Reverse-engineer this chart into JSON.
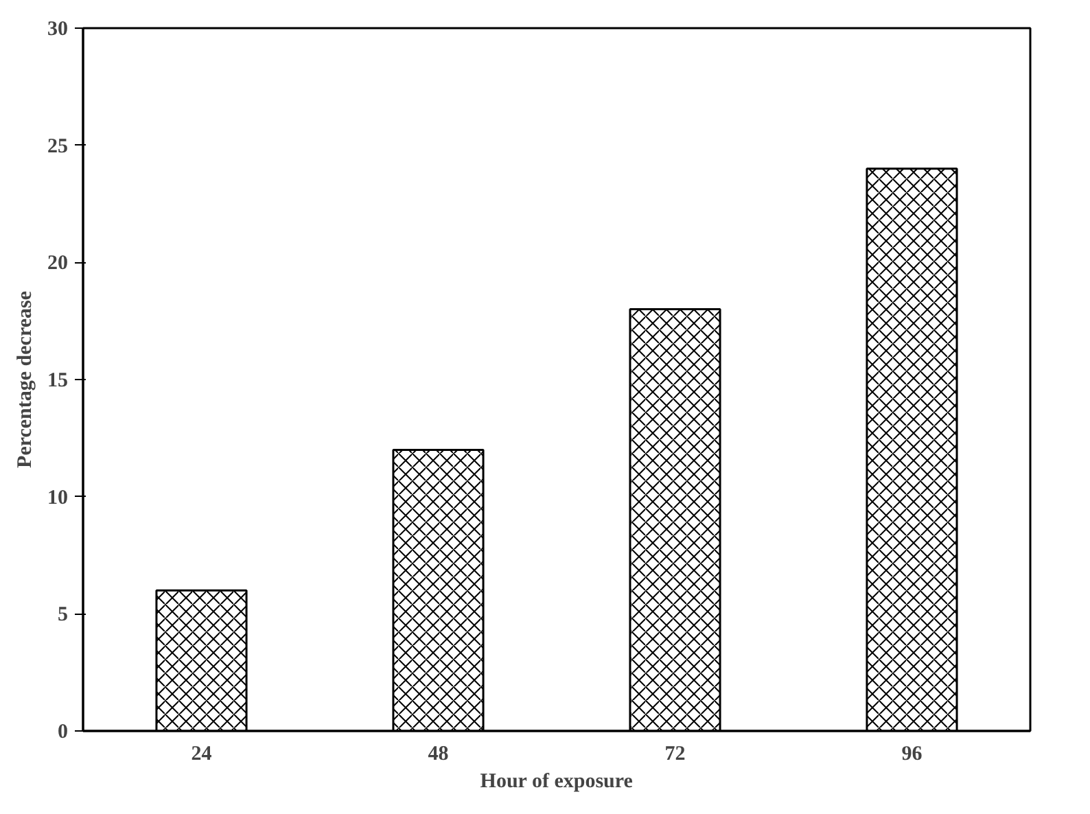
{
  "chart_data": {
    "type": "bar",
    "xlabel": "Hour of exposure",
    "ylabel": "Percentage decrease",
    "categories": [
      "24",
      "48",
      "72",
      "96"
    ],
    "values": [
      6,
      12,
      18,
      24
    ],
    "color": "#000000",
    "ylim": [
      0,
      30
    ],
    "yticks": [
      0,
      5,
      10,
      15,
      20,
      25,
      30
    ],
    "grid": false
  }
}
